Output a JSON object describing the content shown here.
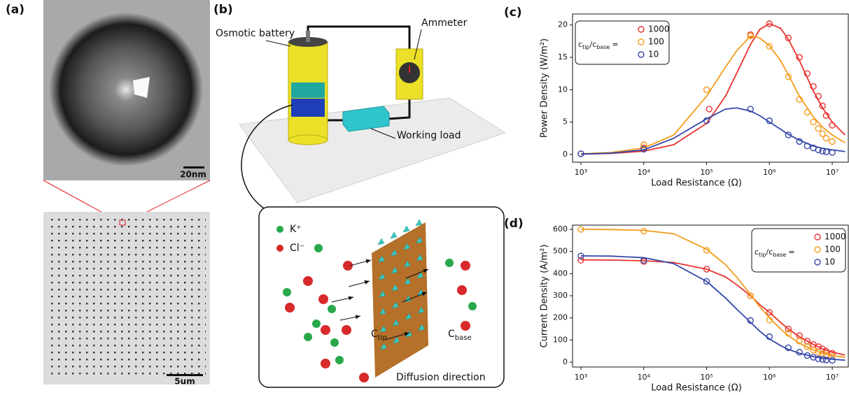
{
  "panels": {
    "a": {
      "label": "(a)",
      "scale_top": "20nm",
      "scale_bottom": "5um"
    },
    "b": {
      "label": "(b)",
      "battery": "Osmotic battery",
      "ammeter": "Ammeter",
      "load": "Working load",
      "k": "K⁺",
      "cl": "Cl⁻",
      "c_tip": {
        "c": "C",
        "sub": "tip"
      },
      "c_base": {
        "c": "C",
        "sub": "base"
      },
      "diffusion": "Diffusion direction"
    }
  },
  "chart_data": [
    {
      "type": "scatter",
      "panel_label": "(c)",
      "xlabel": "Load Resistance (Ω)",
      "ylabel": "Power Density (W/m²)",
      "xscale": "log",
      "xlim": [
        735,
        18000000
      ],
      "ylim": [
        -1.2,
        21.7
      ],
      "xticks": [
        {
          "value": 1000,
          "label": "10³"
        },
        {
          "value": 10000,
          "label": "10⁴"
        },
        {
          "value": 100000,
          "label": "10⁵"
        },
        {
          "value": 1000000,
          "label": "10⁶"
        },
        {
          "value": 10000000,
          "label": "10⁷"
        }
      ],
      "yticks": [
        0,
        5,
        10,
        15,
        20
      ],
      "legend": "upper left",
      "legend_title": {
        "c1": "c",
        "sub1": "tip",
        "c2": "/c",
        "sub2": "base",
        "eq": "="
      },
      "series": [
        {
          "name": "1000",
          "color": "#e8322f",
          "x": [
            1000,
            10000,
            110000,
            500000,
            1000000,
            2000000,
            3000000,
            4000000,
            5000000,
            6000000,
            7000000,
            8000000,
            10000000
          ],
          "values": [
            0.1,
            1.0,
            7.0,
            18.5,
            20.2,
            18,
            15,
            12.5,
            10.5,
            9,
            7.5,
            6,
            4.5
          ],
          "fit_x": [
            1000,
            3000,
            10000,
            30000,
            100000,
            200000,
            300000,
            500000,
            700000,
            1000000,
            1500000,
            2000000,
            3000000,
            5000000,
            7000000,
            10000000,
            16000000
          ],
          "fit": [
            0.05,
            0.15,
            0.5,
            1.5,
            4.8,
            9,
            12.5,
            17,
            19.3,
            20.2,
            19.5,
            17.8,
            14.5,
            9.8,
            7.2,
            5,
            3
          ]
        },
        {
          "name": "100",
          "color": "#f39c1c",
          "x": [
            1000,
            10000,
            100000,
            500000,
            1000000,
            2000000,
            3000000,
            4000000,
            5000000,
            6000000,
            7000000,
            8000000,
            10000000
          ],
          "values": [
            0.1,
            1.5,
            10,
            18.3,
            16.7,
            12,
            8.5,
            6.5,
            5,
            4,
            3.2,
            2.5,
            2.0
          ],
          "fit_x": [
            1000,
            3000,
            10000,
            30000,
            100000,
            200000,
            300000,
            500000,
            700000,
            1000000,
            1500000,
            2000000,
            3000000,
            5000000,
            7000000,
            10000000,
            16000000
          ],
          "fit": [
            0.1,
            0.3,
            1,
            3,
            9,
            13.5,
            16,
            18.3,
            18,
            16.8,
            14.5,
            12.3,
            9,
            5.8,
            4.2,
            3,
            1.8
          ]
        },
        {
          "name": "10",
          "color": "#3447a8",
          "x": [
            1000,
            10000,
            100000,
            500000,
            1000000,
            2000000,
            3000000,
            4000000,
            5000000,
            6000000,
            7000000,
            8000000,
            10000000
          ],
          "values": [
            0.1,
            0.8,
            5.2,
            7.0,
            5.2,
            3,
            2,
            1.3,
            1,
            0.7,
            0.5,
            0.4,
            0.3
          ],
          "fit_x": [
            1000,
            3000,
            10000,
            30000,
            100000,
            200000,
            300000,
            500000,
            700000,
            1000000,
            1500000,
            2000000,
            3000000,
            5000000,
            7000000,
            10000000,
            16000000
          ],
          "fit": [
            0.05,
            0.2,
            0.7,
            2.5,
            5.5,
            7,
            7.2,
            6.7,
            6,
            5,
            3.9,
            3.1,
            2.2,
            1.3,
            0.95,
            0.7,
            0.45
          ]
        }
      ]
    },
    {
      "type": "scatter",
      "panel_label": "(d)",
      "xlabel": "Load Resistance (Ω)",
      "ylabel": "Current Density (A/m²)",
      "xscale": "log",
      "xlim": [
        735,
        18000000
      ],
      "ylim": [
        -22,
        619
      ],
      "xticks": [
        {
          "value": 1000,
          "label": "10³"
        },
        {
          "value": 10000,
          "label": "10⁴"
        },
        {
          "value": 100000,
          "label": "10⁵"
        },
        {
          "value": 1000000,
          "label": "10⁶"
        },
        {
          "value": 10000000,
          "label": "10⁷"
        }
      ],
      "yticks": [
        0,
        100,
        200,
        300,
        400,
        500,
        600
      ],
      "legend": "upper right",
      "legend_title": {
        "c1": "c",
        "sub1": "tip",
        "c2": "/c",
        "sub2": "base",
        "eq": "="
      },
      "series": [
        {
          "name": "1000",
          "color": "#e8322f",
          "x": [
            1000,
            10000,
            100000,
            500000,
            1000000,
            2000000,
            3000000,
            4000000,
            5000000,
            6000000,
            7000000,
            8000000,
            10000000
          ],
          "values": [
            460,
            455,
            420,
            300,
            225,
            150,
            120,
            95,
            80,
            70,
            60,
            50,
            40
          ],
          "fit_x": [
            1000,
            3000,
            10000,
            30000,
            100000,
            200000,
            300000,
            500000,
            700000,
            1000000,
            1500000,
            2000000,
            3000000,
            5000000,
            7000000,
            10000000,
            16000000
          ],
          "fit": [
            462,
            461,
            458,
            450,
            420,
            385,
            350,
            300,
            260,
            225,
            180,
            150,
            115,
            80,
            60,
            45,
            32
          ]
        },
        {
          "name": "100",
          "color": "#f39c1c",
          "x": [
            1000,
            10000,
            100000,
            500000,
            1000000,
            2000000,
            3000000,
            4000000,
            5000000,
            6000000,
            7000000,
            8000000,
            10000000
          ],
          "values": [
            600,
            592,
            505,
            300,
            190,
            130,
            95,
            70,
            55,
            45,
            38,
            32,
            25
          ],
          "fit_x": [
            1000,
            3000,
            10000,
            30000,
            100000,
            200000,
            300000,
            500000,
            700000,
            1000000,
            1500000,
            2000000,
            3000000,
            5000000,
            7000000,
            10000000,
            16000000
          ],
          "fit": [
            600,
            599,
            595,
            580,
            510,
            440,
            385,
            305,
            250,
            200,
            150,
            120,
            85,
            55,
            40,
            30,
            22
          ]
        },
        {
          "name": "10",
          "color": "#3447a8",
          "x": [
            1000,
            10000,
            100000,
            500000,
            1000000,
            2000000,
            3000000,
            4000000,
            5000000,
            6000000,
            7000000,
            8000000,
            10000000
          ],
          "values": [
            480,
            460,
            365,
            188,
            115,
            65,
            45,
            30,
            22,
            15,
            12,
            10,
            8
          ],
          "fit_x": [
            1000,
            3000,
            10000,
            30000,
            100000,
            200000,
            300000,
            500000,
            700000,
            1000000,
            1500000,
            2000000,
            3000000,
            5000000,
            7000000,
            10000000,
            16000000
          ],
          "fit": [
            480,
            479,
            472,
            445,
            365,
            290,
            240,
            180,
            140,
            105,
            75,
            58,
            40,
            25,
            18,
            13,
            9
          ]
        }
      ]
    }
  ]
}
